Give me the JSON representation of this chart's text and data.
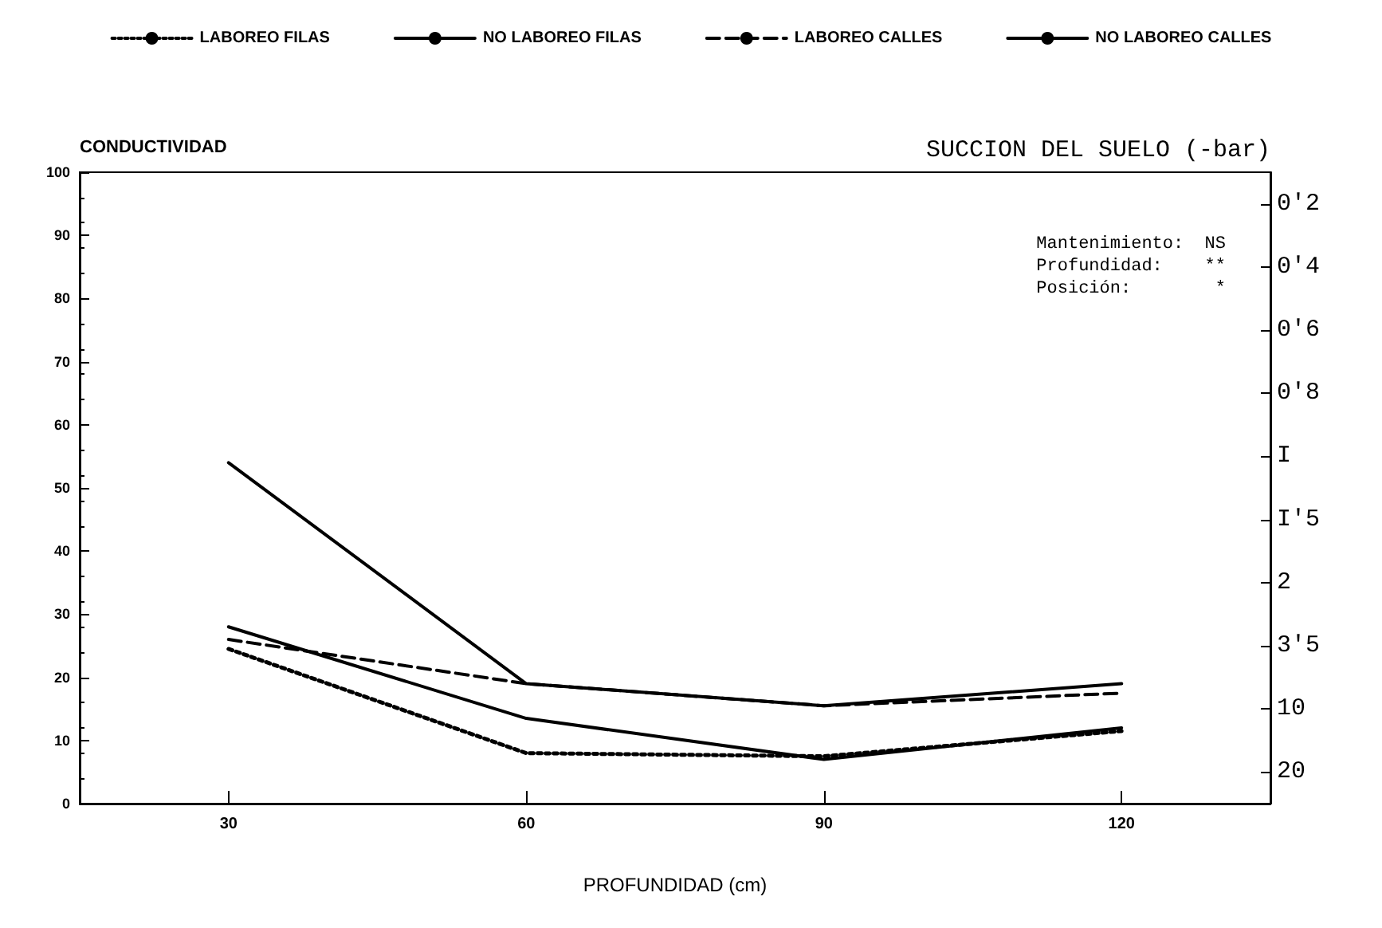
{
  "chart_data": {
    "type": "line",
    "xlabel": "PROFUNDIDAD (cm)",
    "ylabel": "CONDUCTIVIDAD",
    "y2label": "SUCCION DEL SUELO (-bar)",
    "x": [
      30,
      60,
      90,
      120
    ],
    "series": [
      {
        "name": "LABOREO FILAS",
        "color": "#000000",
        "line_style": "dotted",
        "values": [
          24.5,
          8,
          7.5,
          11.5
        ]
      },
      {
        "name": "NO LABOREO FILAS",
        "color": "#000000",
        "line_style": "solid",
        "values": [
          28,
          13.5,
          7,
          12
        ]
      },
      {
        "name": "LABOREO CALLES",
        "color": "#000000",
        "line_style": "dashed",
        "values": [
          26,
          19,
          15.5,
          17.5
        ]
      },
      {
        "name": "NO LABOREO CALLES",
        "color": "#000000",
        "line_style": "solid",
        "values": [
          54,
          19,
          15.5,
          19
        ]
      }
    ],
    "xlim": [
      15,
      135
    ],
    "xticks": [
      30,
      60,
      90,
      120
    ],
    "ylim": [
      0,
      100
    ],
    "yticks": [
      0,
      10,
      20,
      30,
      40,
      50,
      60,
      70,
      80,
      90,
      100
    ],
    "y2_categories": [
      "0'2",
      "0'4",
      "0'6",
      "0'8",
      "I",
      "I'5",
      "2",
      "3'5",
      "10",
      "20"
    ],
    "annotations": [
      "Mantenimiento:  NS",
      "Profundidad:    **",
      "Posición:        *"
    ],
    "legend": "top",
    "grid": false,
    "marker": "none"
  }
}
